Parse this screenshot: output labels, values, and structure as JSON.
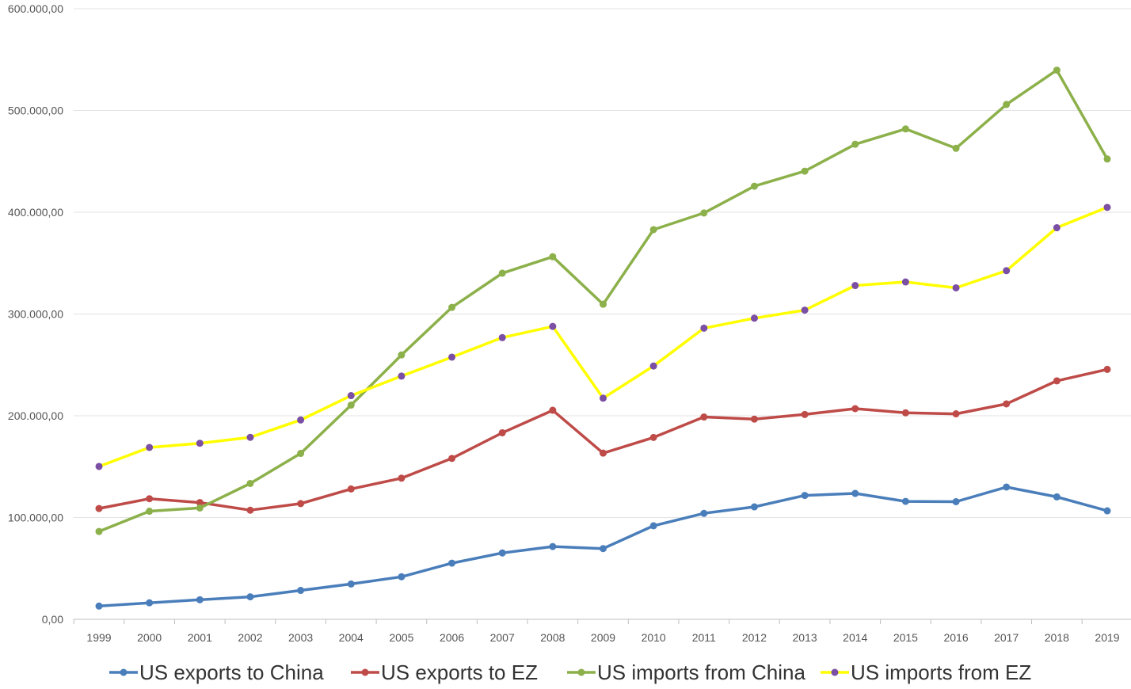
{
  "chart_data": {
    "type": "line",
    "title": "",
    "xlabel": "",
    "ylabel": "",
    "categories": [
      "1999",
      "2000",
      "2001",
      "2002",
      "2003",
      "2004",
      "2005",
      "2006",
      "2007",
      "2008",
      "2009",
      "2010",
      "2011",
      "2012",
      "2013",
      "2014",
      "2015",
      "2016",
      "2017",
      "2018",
      "2019"
    ],
    "ylim": [
      0,
      600000
    ],
    "y_ticks": [
      0,
      100000,
      200000,
      300000,
      400000,
      500000,
      600000
    ],
    "y_tick_labels": [
      "0,00",
      "100.000,00",
      "200.000,00",
      "300.000,00",
      "400.000,00",
      "500.000,00",
      "600.000,00"
    ],
    "grid": "horizontal",
    "legend_position": "bottom",
    "series": [
      {
        "name": "US exports to China",
        "color": "#4a7ebb",
        "marker_color": "#4a7ebb",
        "values": [
          13000,
          16200,
          19200,
          22100,
          28400,
          34700,
          41800,
          55200,
          65200,
          71500,
          69500,
          91900,
          104100,
          110500,
          121700,
          123700,
          115900,
          115600,
          130000,
          120300,
          106600
        ]
      },
      {
        "name": "US exports to EZ",
        "color": "#be4b48",
        "marker_color": "#be4b48",
        "values": [
          108900,
          118500,
          114700,
          107200,
          113700,
          128100,
          138700,
          158100,
          183300,
          205400,
          163300,
          178700,
          198800,
          196700,
          201300,
          207000,
          202900,
          201900,
          211700,
          234300,
          245600
        ]
      },
      {
        "name": "US imports from China",
        "color": "#8cb04a",
        "marker_color": "#8cb04a",
        "values": [
          86300,
          106200,
          109400,
          133500,
          163000,
          210500,
          259800,
          306500,
          340100,
          356300,
          309600,
          382900,
          399300,
          425600,
          440400,
          466800,
          481900,
          462800,
          505900,
          539600,
          452300
        ]
      },
      {
        "name": "US imports from EZ",
        "color": "#ffff00",
        "marker_color": "#7b4fa3",
        "values": [
          150200,
          168900,
          173000,
          178800,
          195900,
          219800,
          239000,
          257600,
          276800,
          287800,
          217300,
          248900,
          286100,
          295900,
          303800,
          328000,
          331500,
          325700,
          342600,
          384800,
          404800
        ]
      }
    ]
  }
}
